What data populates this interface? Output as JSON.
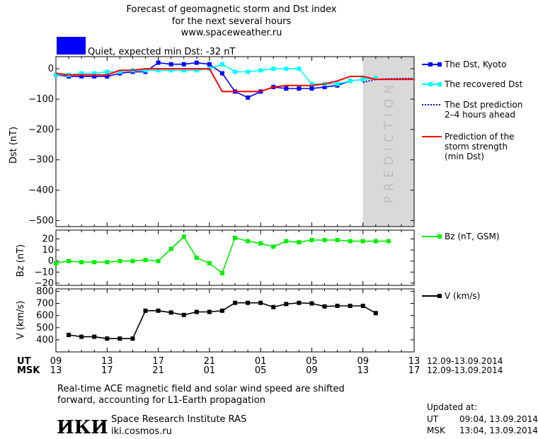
{
  "header": {
    "line1": "Forecast of geomagnetic storm and Dst index",
    "line2": "for the next several hours",
    "line3": "www.spaceweather.ru",
    "status": "Quiet, expected min Dst: -32 nT",
    "status_color": "#0000ff"
  },
  "prediction_label": "PREDICTION",
  "chart_data": [
    {
      "type": "line",
      "ylabel": "Dst (nT)",
      "ylim": [
        -520,
        40
      ],
      "yticks": [
        0,
        -100,
        -200,
        -300,
        -400,
        -500
      ],
      "x_range": [
        0,
        28
      ],
      "prediction_window": [
        24,
        28
      ],
      "series": [
        {
          "name": "The Dst, Kyoto",
          "color": "#0000ff",
          "marker": "square",
          "x": [
            0,
            1,
            2,
            3,
            4,
            5,
            6,
            7,
            8,
            9,
            10,
            11,
            12,
            13,
            14,
            15,
            16,
            17,
            18,
            19,
            20,
            21,
            22,
            23,
            24
          ],
          "y": [
            -20,
            -25,
            -25,
            -25,
            -25,
            -15,
            -10,
            -10,
            20,
            15,
            15,
            20,
            15,
            -15,
            -75,
            -95,
            -75,
            -60,
            -65,
            -65,
            -65,
            -60,
            -55,
            -40,
            -35
          ]
        },
        {
          "name": "The recovered Dst",
          "color": "#00ffff",
          "marker": "square",
          "x": [
            0,
            1,
            2,
            3,
            4,
            5,
            6,
            7,
            8,
            9,
            10,
            11,
            12,
            13,
            14,
            15,
            16,
            17,
            18,
            19,
            20,
            21,
            22,
            23,
            24,
            25
          ],
          "y": [
            -20,
            -20,
            -15,
            -15,
            -10,
            -10,
            -5,
            -5,
            -5,
            -5,
            -5,
            -5,
            0,
            15,
            -10,
            -10,
            -5,
            0,
            0,
            0,
            -50,
            -50,
            -50,
            -40,
            -35,
            -30
          ]
        },
        {
          "name": "The Dst prediction 2-4 hours ahead",
          "color": "#0000cc",
          "style": "dotted",
          "x": [
            24,
            25,
            26,
            27,
            28
          ],
          "y": [
            -45,
            -35,
            -33,
            -32,
            -32
          ]
        },
        {
          "name": "Prediction of the storm strength (min Dst)",
          "color": "#ff0000",
          "x": [
            0,
            1,
            2,
            3,
            4,
            5,
            6,
            7,
            8,
            9,
            10,
            11,
            12,
            13,
            14,
            15,
            16,
            17,
            18,
            19,
            20,
            21,
            22,
            23,
            24,
            25,
            26,
            27,
            28
          ],
          "y": [
            -15,
            -20,
            -20,
            -20,
            -20,
            -5,
            -5,
            0,
            0,
            0,
            0,
            0,
            0,
            -75,
            -75,
            -75,
            -75,
            -60,
            -55,
            -55,
            -55,
            -50,
            -40,
            -25,
            -25,
            -35,
            -35,
            -35,
            -35
          ]
        }
      ]
    },
    {
      "type": "line",
      "ylabel": "Bz (nT)",
      "ylim": [
        -22,
        28
      ],
      "yticks": [
        20,
        10,
        0,
        -10,
        -20
      ],
      "x_range": [
        0,
        28
      ],
      "series": [
        {
          "name": "Bz (nT, GSM)",
          "color": "#00ee00",
          "marker": "square",
          "x": [
            0,
            1,
            2,
            3,
            4,
            5,
            6,
            7,
            8,
            9,
            10,
            11,
            12,
            13,
            14,
            15,
            16,
            17,
            18,
            19,
            20,
            21,
            22,
            23,
            24,
            25,
            26
          ],
          "y": [
            -2,
            0,
            -1,
            -1,
            -1,
            0,
            0,
            1,
            0,
            11,
            22,
            3,
            -2,
            -11,
            21,
            18,
            16,
            13,
            18,
            17,
            19,
            19,
            19,
            18,
            18,
            18,
            18
          ]
        }
      ]
    },
    {
      "type": "line",
      "ylabel": "V (km/s)",
      "ylim": [
        300,
        820
      ],
      "yticks": [
        800,
        700,
        600,
        500,
        400
      ],
      "x_range": [
        0,
        28
      ],
      "series": [
        {
          "name": "V (km/s)",
          "color": "#000000",
          "marker": "square",
          "x": [
            1,
            2,
            3,
            4,
            5,
            6,
            7,
            8,
            9,
            10,
            11,
            12,
            13,
            14,
            15,
            16,
            17,
            18,
            19,
            20,
            21,
            22,
            23,
            24,
            25
          ],
          "y": [
            440,
            425,
            425,
            410,
            410,
            410,
            640,
            640,
            625,
            605,
            630,
            630,
            640,
            705,
            705,
            705,
            670,
            695,
            705,
            700,
            675,
            680,
            680,
            680,
            620
          ]
        }
      ]
    }
  ],
  "time_axis": {
    "ut_label": "UT",
    "msk_label": "MSK",
    "ut_ticks": [
      "09",
      "13",
      "17",
      "21",
      "01",
      "05",
      "09",
      "13"
    ],
    "msk_ticks": [
      "13",
      "17",
      "21",
      "01",
      "05",
      "09",
      "13",
      "17"
    ],
    "date_range_ut": "12.09-13.09.2014",
    "date_range_msk": "12.09-13.09.2014"
  },
  "footer": {
    "note_line1": "Real-time ACE magnetic field and solar wind speed are shifted",
    "note_line2": "forward, accounting for L1-Earth propagation",
    "logo_text": "ИКИ",
    "institute": "Space Research Institute RAS",
    "website": "iki.cosmos.ru",
    "updated_label": "Updated at:",
    "updated_ut_label": "UT",
    "updated_ut": "09:04, 13.09.2014",
    "updated_msk_label": "MSK",
    "updated_msk": "13:04, 13.09.2014"
  }
}
